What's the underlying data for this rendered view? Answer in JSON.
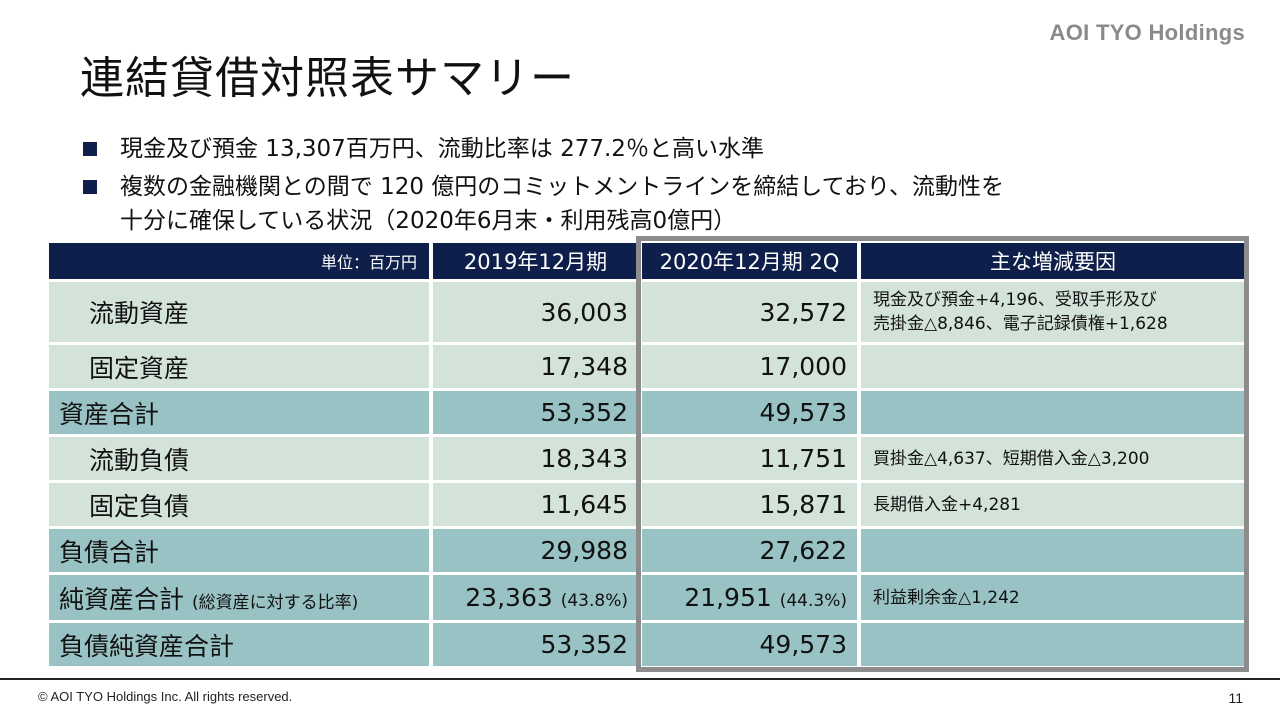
{
  "logo": "AOI TYO Holdings",
  "title": "連結貸借対照表サマリー",
  "bullets": [
    {
      "lines": [
        "現金及び預金 13,307百万円、流動比率は 277.2％と高い水準"
      ]
    },
    {
      "lines": [
        "複数の金融機関との間で 120 億円のコミットメントラインを締結しており、流動性を",
        "十分に確保している状況（2020年6月末・利用残高0億円）"
      ]
    }
  ],
  "table": {
    "headers": {
      "unit": "単位：百万円",
      "col1": "2019年12月期",
      "col2": "2020年12月期 2Q",
      "col3": "主な増減要因"
    },
    "rows": [
      {
        "label": "流動資産",
        "label_note": "",
        "v2019": "36,003",
        "v2019_note": "",
        "v2020": "32,572",
        "v2020_note": "",
        "factor_lines": [
          "現金及び預金+4,196、受取手形及び",
          "売掛金△8,846、電子記録債権+1,628"
        ],
        "style": "light",
        "indent": true
      },
      {
        "label": "固定資産",
        "label_note": "",
        "v2019": "17,348",
        "v2019_note": "",
        "v2020": "17,000",
        "v2020_note": "",
        "factor_lines": [],
        "style": "light",
        "indent": true
      },
      {
        "label": "資産合計",
        "label_note": "",
        "v2019": "53,352",
        "v2019_note": "",
        "v2020": "49,573",
        "v2020_note": "",
        "factor_lines": [],
        "style": "dark",
        "indent": false
      },
      {
        "label": "流動負債",
        "label_note": "",
        "v2019": "18,343",
        "v2019_note": "",
        "v2020": "11,751",
        "v2020_note": "",
        "factor_lines": [
          "買掛金△4,637、短期借入金△3,200"
        ],
        "style": "light",
        "indent": true
      },
      {
        "label": "固定負債",
        "label_note": "",
        "v2019": "11,645",
        "v2019_note": "",
        "v2020": "15,871",
        "v2020_note": "",
        "factor_lines": [
          "長期借入金+4,281"
        ],
        "style": "light",
        "indent": true
      },
      {
        "label": "負債合計",
        "label_note": "",
        "v2019": "29,988",
        "v2019_note": "",
        "v2020": "27,622",
        "v2020_note": "",
        "factor_lines": [],
        "style": "dark",
        "indent": false
      },
      {
        "label": "純資産合計",
        "label_note": "(総資産に対する比率)",
        "v2019": "23,363",
        "v2019_note": "(43.8%)",
        "v2020": "21,951",
        "v2020_note": "(44.3%)",
        "factor_lines": [
          "利益剰余金△1,242"
        ],
        "style": "dark",
        "indent": false
      },
      {
        "label": "負債純資産合計",
        "label_note": "",
        "v2019": "53,352",
        "v2019_note": "",
        "v2020": "49,573",
        "v2020_note": "",
        "factor_lines": [],
        "style": "dark",
        "indent": false
      }
    ]
  },
  "footer": {
    "copyright": "© AOI TYO Holdings Inc. All rights reserved.",
    "page": "11"
  },
  "colors": {
    "header_bg": "#0d1f4a",
    "row_light": "#d3e3da",
    "row_dark": "#99c2c4",
    "highlight_border": "#8c8c8c"
  }
}
